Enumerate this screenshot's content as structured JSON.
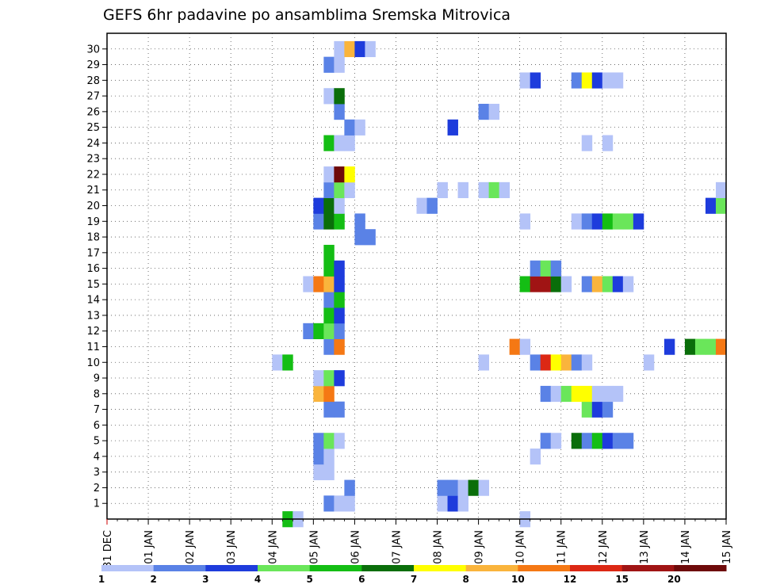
{
  "chart_data": {
    "type": "heatmap",
    "title": "GEFS 6hr padavine po ansamblima Sremska Mitrovica",
    "y_ticks": [
      "1",
      "2",
      "3",
      "4",
      "5",
      "6",
      "7",
      "8",
      "9",
      "10",
      "11",
      "12",
      "13",
      "14",
      "15",
      "16",
      "17",
      "18",
      "19",
      "20",
      "21",
      "22",
      "23",
      "24",
      "25",
      "26",
      "27",
      "28",
      "29",
      "30"
    ],
    "x_ticks": [
      "31 DEC",
      "01 JAN",
      "02 JAN",
      "03 JAN",
      "04 JAN",
      "05 JAN",
      "06 JAN",
      "07 JAN",
      "08 JAN",
      "09 JAN",
      "10 JAN",
      "11 JAN",
      "12 JAN",
      "13 JAN",
      "14 JAN",
      "15 JAN"
    ],
    "x_unit": "6h steps from 31 DEC 00z",
    "grid": true,
    "legend_position": "bottom",
    "colorbar": {
      "labels": [
        "1",
        "2",
        "3",
        "4",
        "5",
        "6",
        "7",
        "8",
        "10",
        "12",
        "15",
        "20"
      ],
      "colors": [
        "#b4c3f8",
        "#5a82e6",
        "#1e3cdc",
        "#6ae65a",
        "#14be14",
        "#0a6e0a",
        "#ffff00",
        "#fab43c",
        "#f57814",
        "#dc2814",
        "#a01414",
        "#6e0a0a"
      ]
    },
    "cells": [
      [
        0,
        17,
        12,
        5
      ],
      [
        0,
        18,
        13,
        1
      ],
      [
        0,
        40,
        11,
        1
      ],
      [
        1,
        21,
        1,
        2
      ],
      [
        1,
        22,
        7,
        1
      ],
      [
        1,
        23,
        8,
        1
      ],
      [
        1,
        32,
        12,
        1
      ],
      [
        1,
        33,
        13,
        3
      ],
      [
        1,
        34,
        14,
        1
      ],
      [
        2,
        23,
        2,
        2
      ],
      [
        2,
        32,
        2,
        2
      ],
      [
        2,
        33,
        3,
        2
      ],
      [
        2,
        34,
        4,
        1
      ],
      [
        2,
        35,
        5,
        6
      ],
      [
        2,
        36,
        6,
        1
      ],
      [
        3,
        20,
        8,
        1
      ],
      [
        3,
        21,
        8,
        1
      ],
      [
        4,
        20,
        9,
        2
      ],
      [
        4,
        21,
        9,
        1
      ],
      [
        4,
        41,
        10,
        1
      ],
      [
        5,
        20,
        10,
        2
      ],
      [
        5,
        21,
        10,
        4
      ],
      [
        5,
        22,
        11,
        1
      ],
      [
        5,
        42,
        11,
        2
      ],
      [
        5,
        43,
        12,
        1
      ],
      [
        5,
        45,
        13,
        6
      ],
      [
        5,
        46,
        14,
        2
      ],
      [
        5,
        47,
        15,
        5
      ],
      [
        5,
        48,
        16,
        3
      ],
      [
        5,
        49,
        17,
        2
      ],
      [
        5,
        50,
        18,
        2
      ],
      [
        7,
        21,
        2,
        2
      ],
      [
        7,
        22,
        3,
        2
      ],
      [
        7,
        46,
        4,
        4
      ],
      [
        7,
        47,
        5,
        3
      ],
      [
        7,
        48,
        6,
        2
      ],
      [
        8,
        20,
        7,
        8
      ],
      [
        8,
        21,
        8,
        9
      ],
      [
        8,
        42,
        6,
        2
      ],
      [
        8,
        43,
        7,
        1
      ],
      [
        8,
        44,
        8,
        4
      ],
      [
        8,
        45,
        9,
        7
      ],
      [
        8,
        46,
        10,
        7
      ],
      [
        8,
        47,
        11,
        1
      ],
      [
        8,
        48,
        12,
        1
      ],
      [
        8,
        49,
        13,
        1
      ],
      [
        9,
        20,
        9,
        1
      ],
      [
        9,
        21,
        10,
        4
      ],
      [
        9,
        22,
        11,
        3
      ],
      [
        10,
        16,
        9,
        1
      ],
      [
        10,
        17,
        10,
        5
      ],
      [
        10,
        36,
        11,
        1
      ],
      [
        10,
        41,
        12,
        2
      ],
      [
        10,
        42,
        13,
        10
      ],
      [
        10,
        43,
        14,
        7
      ],
      [
        10,
        44,
        15,
        8
      ],
      [
        10,
        45,
        16,
        2
      ],
      [
        10,
        46,
        17,
        1
      ],
      [
        10,
        52,
        18,
        1
      ],
      [
        11,
        21,
        14,
        2
      ],
      [
        11,
        22,
        15,
        9
      ],
      [
        11,
        39,
        16,
        9
      ],
      [
        11,
        40,
        17,
        1
      ],
      [
        11,
        54,
        18,
        3
      ],
      [
        11,
        56,
        19,
        6
      ],
      [
        11,
        57,
        20,
        4
      ],
      [
        11,
        58,
        21,
        4
      ],
      [
        11,
        59,
        22,
        9
      ],
      [
        12,
        19,
        16,
        2
      ],
      [
        12,
        20,
        17,
        5
      ],
      [
        12,
        21,
        18,
        4
      ],
      [
        12,
        22,
        19,
        2
      ],
      [
        13,
        21,
        20,
        5
      ],
      [
        13,
        22,
        21,
        3
      ],
      [
        14,
        21,
        22,
        2
      ],
      [
        14,
        22,
        23,
        5
      ],
      [
        15,
        19,
        23,
        1
      ],
      [
        15,
        20,
        24,
        9
      ],
      [
        15,
        21,
        25,
        8
      ],
      [
        15,
        22,
        26,
        3
      ],
      [
        15,
        40,
        27,
        5
      ],
      [
        15,
        41,
        28,
        11
      ],
      [
        15,
        42,
        28,
        11
      ],
      [
        15,
        43,
        29,
        6
      ],
      [
        15,
        44,
        30,
        1
      ],
      [
        15,
        46,
        31,
        2
      ],
      [
        15,
        47,
        32,
        8
      ],
      [
        15,
        48,
        33,
        4
      ],
      [
        15,
        49,
        34,
        3
      ],
      [
        15,
        50,
        35,
        1
      ],
      [
        16,
        21,
        36,
        5
      ],
      [
        16,
        22,
        37,
        3
      ],
      [
        16,
        41,
        38,
        2
      ],
      [
        16,
        42,
        39,
        4
      ],
      [
        16,
        43,
        40,
        2
      ],
      [
        17,
        21,
        36,
        5
      ],
      [
        18,
        24,
        33,
        2
      ],
      [
        18,
        25,
        34,
        2
      ],
      [
        19,
        20,
        35,
        2
      ],
      [
        19,
        21,
        36,
        6
      ],
      [
        19,
        22,
        37,
        5
      ],
      [
        19,
        24,
        38,
        2
      ],
      [
        19,
        40,
        39,
        1
      ],
      [
        19,
        45,
        40,
        1
      ],
      [
        19,
        46,
        41,
        2
      ],
      [
        19,
        47,
        42,
        3
      ],
      [
        19,
        48,
        43,
        5
      ],
      [
        19,
        49,
        44,
        4
      ],
      [
        19,
        50,
        45,
        4
      ],
      [
        19,
        51,
        46,
        3
      ],
      [
        20,
        20,
        36,
        3
      ],
      [
        20,
        21,
        37,
        6
      ],
      [
        20,
        22,
        38,
        1
      ],
      [
        20,
        30,
        39,
        1
      ],
      [
        20,
        31,
        40,
        2
      ],
      [
        20,
        58,
        41,
        3
      ],
      [
        20,
        59,
        42,
        4
      ],
      [
        21,
        21,
        43,
        2
      ],
      [
        21,
        22,
        44,
        4
      ],
      [
        21,
        23,
        45,
        1
      ],
      [
        21,
        32,
        46,
        1
      ],
      [
        21,
        34,
        47,
        1
      ],
      [
        21,
        36,
        48,
        1
      ],
      [
        21,
        37,
        49,
        4
      ],
      [
        21,
        38,
        50,
        1
      ],
      [
        21,
        59,
        51,
        1
      ],
      [
        22,
        21,
        52,
        1
      ],
      [
        22,
        22,
        53,
        12
      ],
      [
        22,
        23,
        54,
        7
      ],
      [
        23,
        21,
        0,
        0
      ],
      [
        24,
        21,
        55,
        5
      ],
      [
        24,
        22,
        56,
        1
      ],
      [
        24,
        23,
        57,
        1
      ],
      [
        24,
        46,
        58,
        1
      ],
      [
        24,
        48,
        59,
        1
      ],
      [
        25,
        23,
        60,
        2
      ],
      [
        25,
        24,
        61,
        1
      ],
      [
        25,
        33,
        62,
        3
      ],
      [
        26,
        22,
        63,
        2
      ],
      [
        26,
        36,
        64,
        2
      ],
      [
        26,
        37,
        65,
        1
      ],
      [
        27,
        21,
        66,
        1
      ],
      [
        27,
        22,
        67,
        6
      ],
      [
        28,
        40,
        68,
        1
      ],
      [
        28,
        41,
        69,
        3
      ],
      [
        28,
        45,
        70,
        2
      ],
      [
        28,
        46,
        71,
        7
      ],
      [
        28,
        47,
        72,
        3
      ],
      [
        28,
        48,
        73,
        1
      ],
      [
        28,
        49,
        74,
        1
      ],
      [
        29,
        21,
        75,
        2
      ],
      [
        29,
        22,
        76,
        1
      ],
      [
        30,
        22,
        77,
        1
      ],
      [
        30,
        23,
        78,
        8
      ],
      [
        30,
        24,
        79,
        3
      ],
      [
        30,
        25,
        80,
        1
      ]
    ]
  }
}
